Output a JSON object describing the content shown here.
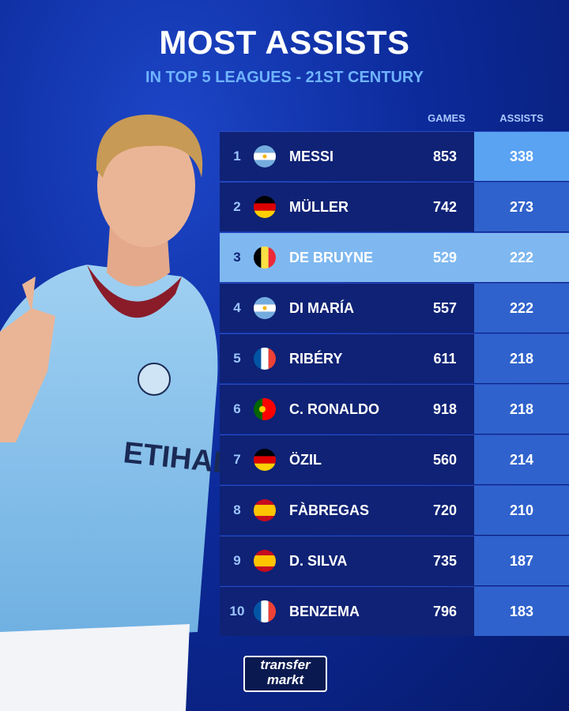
{
  "header": {
    "title": "MOST ASSISTS",
    "subtitle": "IN TOP 5 LEAGUES - 21ST CENTURY"
  },
  "table": {
    "columns": [
      "GAMES",
      "ASSISTS"
    ],
    "rows": [
      [
        1,
        "MESSI",
        853,
        338
      ],
      [
        2,
        "MÜLLER",
        742,
        273
      ],
      [
        3,
        "DE BRUYNE",
        529,
        222
      ],
      [
        4,
        "DI MARÍA",
        557,
        222
      ],
      [
        5,
        "RIBÉRY",
        611,
        218
      ],
      [
        6,
        "C. RONALDO",
        918,
        218
      ],
      [
        7,
        "ÖZIL",
        560,
        214
      ],
      [
        8,
        "FÀBREGAS",
        720,
        210
      ],
      [
        9,
        "D. SILVA",
        735,
        187
      ],
      [
        10,
        "BENZEMA",
        796,
        183
      ]
    ]
  },
  "footer": {
    "logo": [
      "transfer",
      "markt"
    ]
  }
}
